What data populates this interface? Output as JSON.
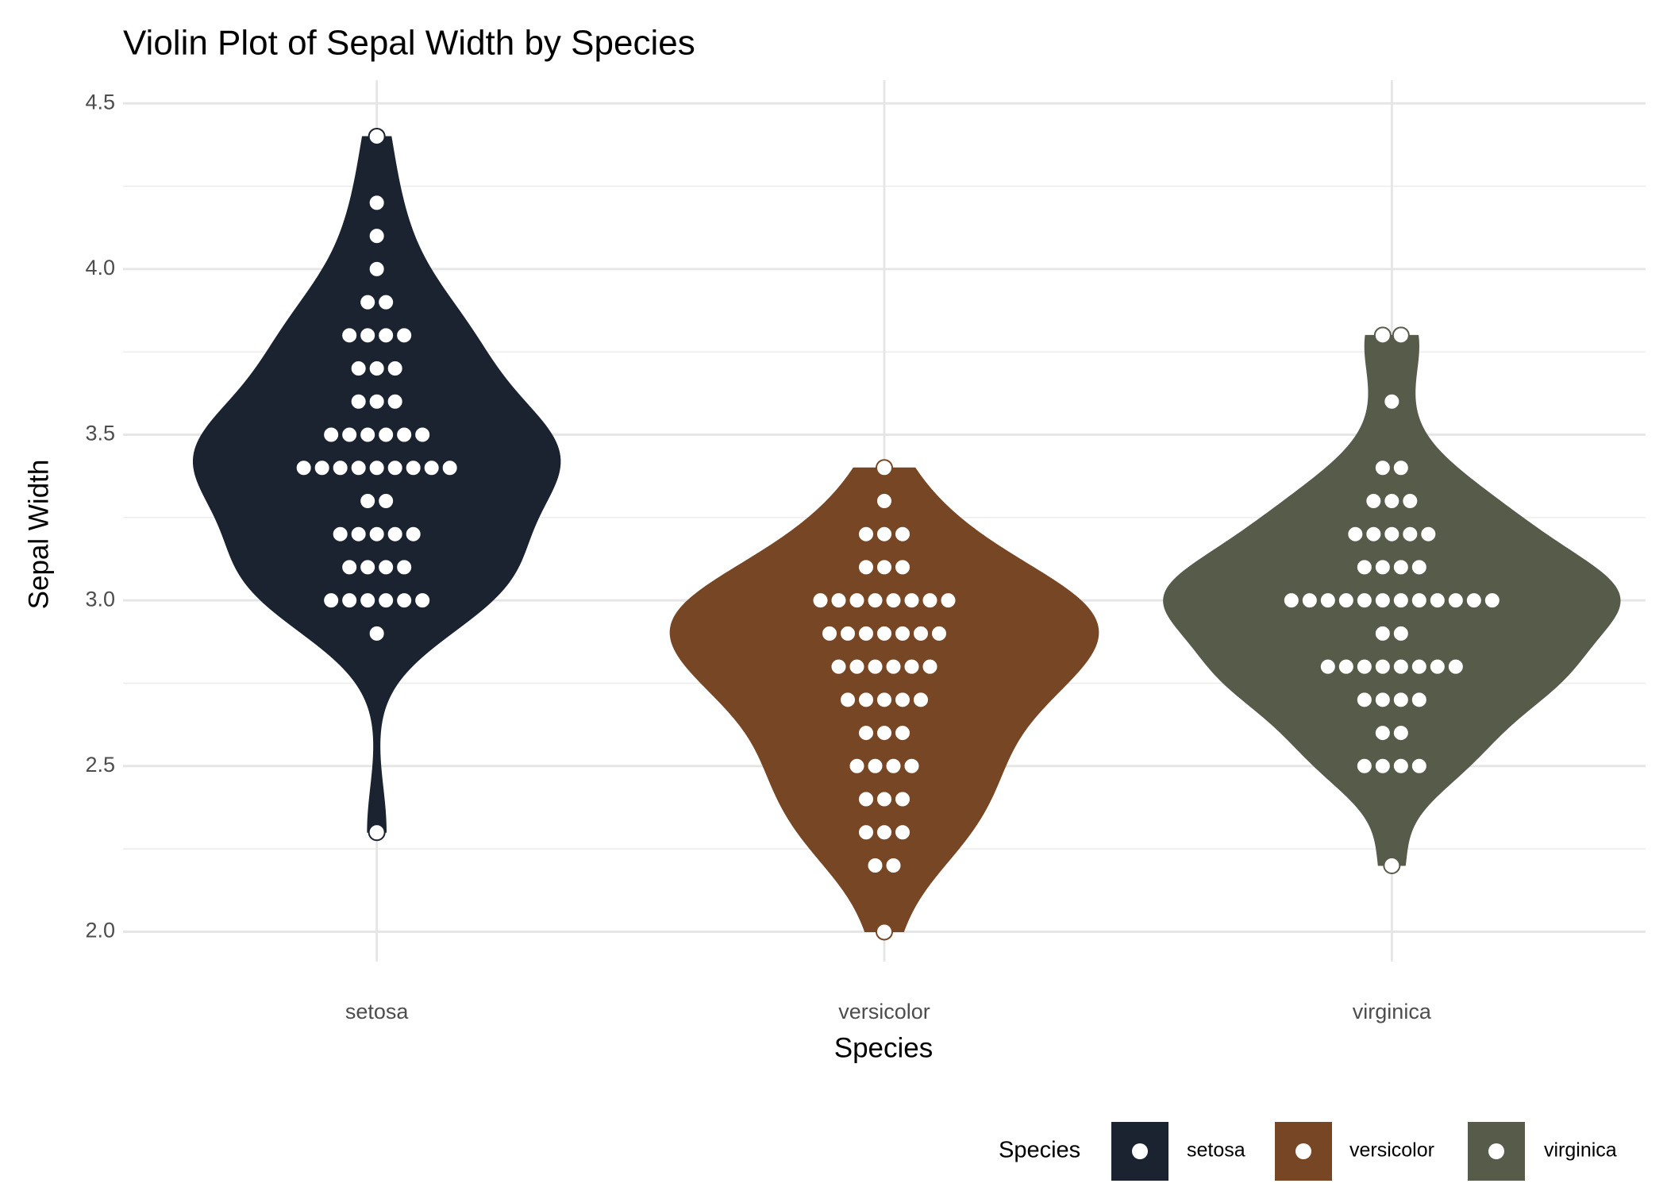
{
  "chart_data": {
    "type": "violin",
    "title": "Violin Plot of Sepal Width by Species",
    "x_label": "Species",
    "y_label": "Sepal Width",
    "categories": [
      "setosa",
      "versicolor",
      "virginica"
    ],
    "series": [
      {
        "name": "setosa",
        "color": "#1a232f",
        "values": [
          4.4,
          4.2,
          4.1,
          4.0,
          3.9,
          3.9,
          3.8,
          3.8,
          3.8,
          3.8,
          3.7,
          3.7,
          3.7,
          3.6,
          3.6,
          3.6,
          3.5,
          3.5,
          3.5,
          3.5,
          3.5,
          3.5,
          3.4,
          3.4,
          3.4,
          3.4,
          3.4,
          3.4,
          3.4,
          3.4,
          3.4,
          3.3,
          3.3,
          3.2,
          3.2,
          3.2,
          3.2,
          3.2,
          3.1,
          3.1,
          3.1,
          3.1,
          3.0,
          3.0,
          3.0,
          3.0,
          3.0,
          3.0,
          2.9,
          2.3
        ]
      },
      {
        "name": "versicolor",
        "color": "#774625",
        "values": [
          3.4,
          3.3,
          3.2,
          3.2,
          3.2,
          3.1,
          3.1,
          3.1,
          3.0,
          3.0,
          3.0,
          3.0,
          3.0,
          3.0,
          3.0,
          3.0,
          2.9,
          2.9,
          2.9,
          2.9,
          2.9,
          2.9,
          2.9,
          2.8,
          2.8,
          2.8,
          2.8,
          2.8,
          2.8,
          2.7,
          2.7,
          2.7,
          2.7,
          2.7,
          2.6,
          2.6,
          2.6,
          2.5,
          2.5,
          2.5,
          2.5,
          2.4,
          2.4,
          2.4,
          2.3,
          2.3,
          2.3,
          2.2,
          2.2,
          2.0
        ]
      },
      {
        "name": "virginica",
        "color": "#565b4a",
        "values": [
          3.8,
          3.8,
          3.6,
          3.4,
          3.4,
          3.3,
          3.3,
          3.3,
          3.2,
          3.2,
          3.2,
          3.2,
          3.2,
          3.1,
          3.1,
          3.1,
          3.1,
          3.0,
          3.0,
          3.0,
          3.0,
          3.0,
          3.0,
          3.0,
          3.0,
          3.0,
          3.0,
          3.0,
          3.0,
          2.9,
          2.9,
          2.8,
          2.8,
          2.8,
          2.8,
          2.8,
          2.8,
          2.8,
          2.8,
          2.7,
          2.7,
          2.7,
          2.7,
          2.6,
          2.6,
          2.5,
          2.5,
          2.5,
          2.5,
          2.2
        ]
      }
    ],
    "ylim": [
      1.91,
      4.57
    ],
    "yticks": [
      {
        "value": 2,
        "label": "2.0"
      },
      2.5,
      {
        "value": 3,
        "label": "3.0"
      },
      3.5,
      {
        "value": 4,
        "label": "4.0"
      },
      4.5
    ],
    "grid": true,
    "legend_title": "Species",
    "legend_position": "bottom-right"
  }
}
